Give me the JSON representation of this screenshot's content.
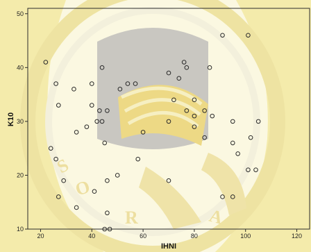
{
  "chart_data": {
    "type": "scatter",
    "xlabel": "IHNI",
    "ylabel": "K10",
    "xlim": [
      15,
      125
    ],
    "ylim": [
      10,
      51
    ],
    "x_ticks": [
      20,
      40,
      60,
      80,
      100,
      120
    ],
    "y_ticks": [
      10,
      20,
      30,
      40,
      50
    ],
    "grid": false,
    "points": [
      {
        "x": 22,
        "y": 41
      },
      {
        "x": 24,
        "y": 25
      },
      {
        "x": 26,
        "y": 37
      },
      {
        "x": 26,
        "y": 23
      },
      {
        "x": 27,
        "y": 33
      },
      {
        "x": 27,
        "y": 16
      },
      {
        "x": 29,
        "y": 19
      },
      {
        "x": 33,
        "y": 36
      },
      {
        "x": 34,
        "y": 28
      },
      {
        "x": 34,
        "y": 14
      },
      {
        "x": 38,
        "y": 29
      },
      {
        "x": 40,
        "y": 37
      },
      {
        "x": 40,
        "y": 33
      },
      {
        "x": 41,
        "y": 17
      },
      {
        "x": 42,
        "y": 30
      },
      {
        "x": 43,
        "y": 32
      },
      {
        "x": 44,
        "y": 30
      },
      {
        "x": 44,
        "y": 40
      },
      {
        "x": 45,
        "y": 26
      },
      {
        "x": 46,
        "y": 32
      },
      {
        "x": 46,
        "y": 19
      },
      {
        "x": 46,
        "y": 13
      },
      {
        "x": 45,
        "y": 10
      },
      {
        "x": 47,
        "y": 10
      },
      {
        "x": 50,
        "y": 20
      },
      {
        "x": 51,
        "y": 36
      },
      {
        "x": 54,
        "y": 37
      },
      {
        "x": 57,
        "y": 37
      },
      {
        "x": 58,
        "y": 23
      },
      {
        "x": 60,
        "y": 28
      },
      {
        "x": 70,
        "y": 39
      },
      {
        "x": 70,
        "y": 30
      },
      {
        "x": 70,
        "y": 19
      },
      {
        "x": 72,
        "y": 34
      },
      {
        "x": 74,
        "y": 38
      },
      {
        "x": 76,
        "y": 41
      },
      {
        "x": 77,
        "y": 40
      },
      {
        "x": 77,
        "y": 32
      },
      {
        "x": 80,
        "y": 34
      },
      {
        "x": 80,
        "y": 29
      },
      {
        "x": 80,
        "y": 31
      },
      {
        "x": 84,
        "y": 32
      },
      {
        "x": 84,
        "y": 27
      },
      {
        "x": 86,
        "y": 40
      },
      {
        "x": 87,
        "y": 31
      },
      {
        "x": 91,
        "y": 46
      },
      {
        "x": 91,
        "y": 16
      },
      {
        "x": 95,
        "y": 30
      },
      {
        "x": 95,
        "y": 26
      },
      {
        "x": 95,
        "y": 16
      },
      {
        "x": 97,
        "y": 24
      },
      {
        "x": 101,
        "y": 46
      },
      {
        "x": 101,
        "y": 21
      },
      {
        "x": 102,
        "y": 27
      },
      {
        "x": 104,
        "y": 21
      },
      {
        "x": 105,
        "y": 30
      }
    ]
  }
}
